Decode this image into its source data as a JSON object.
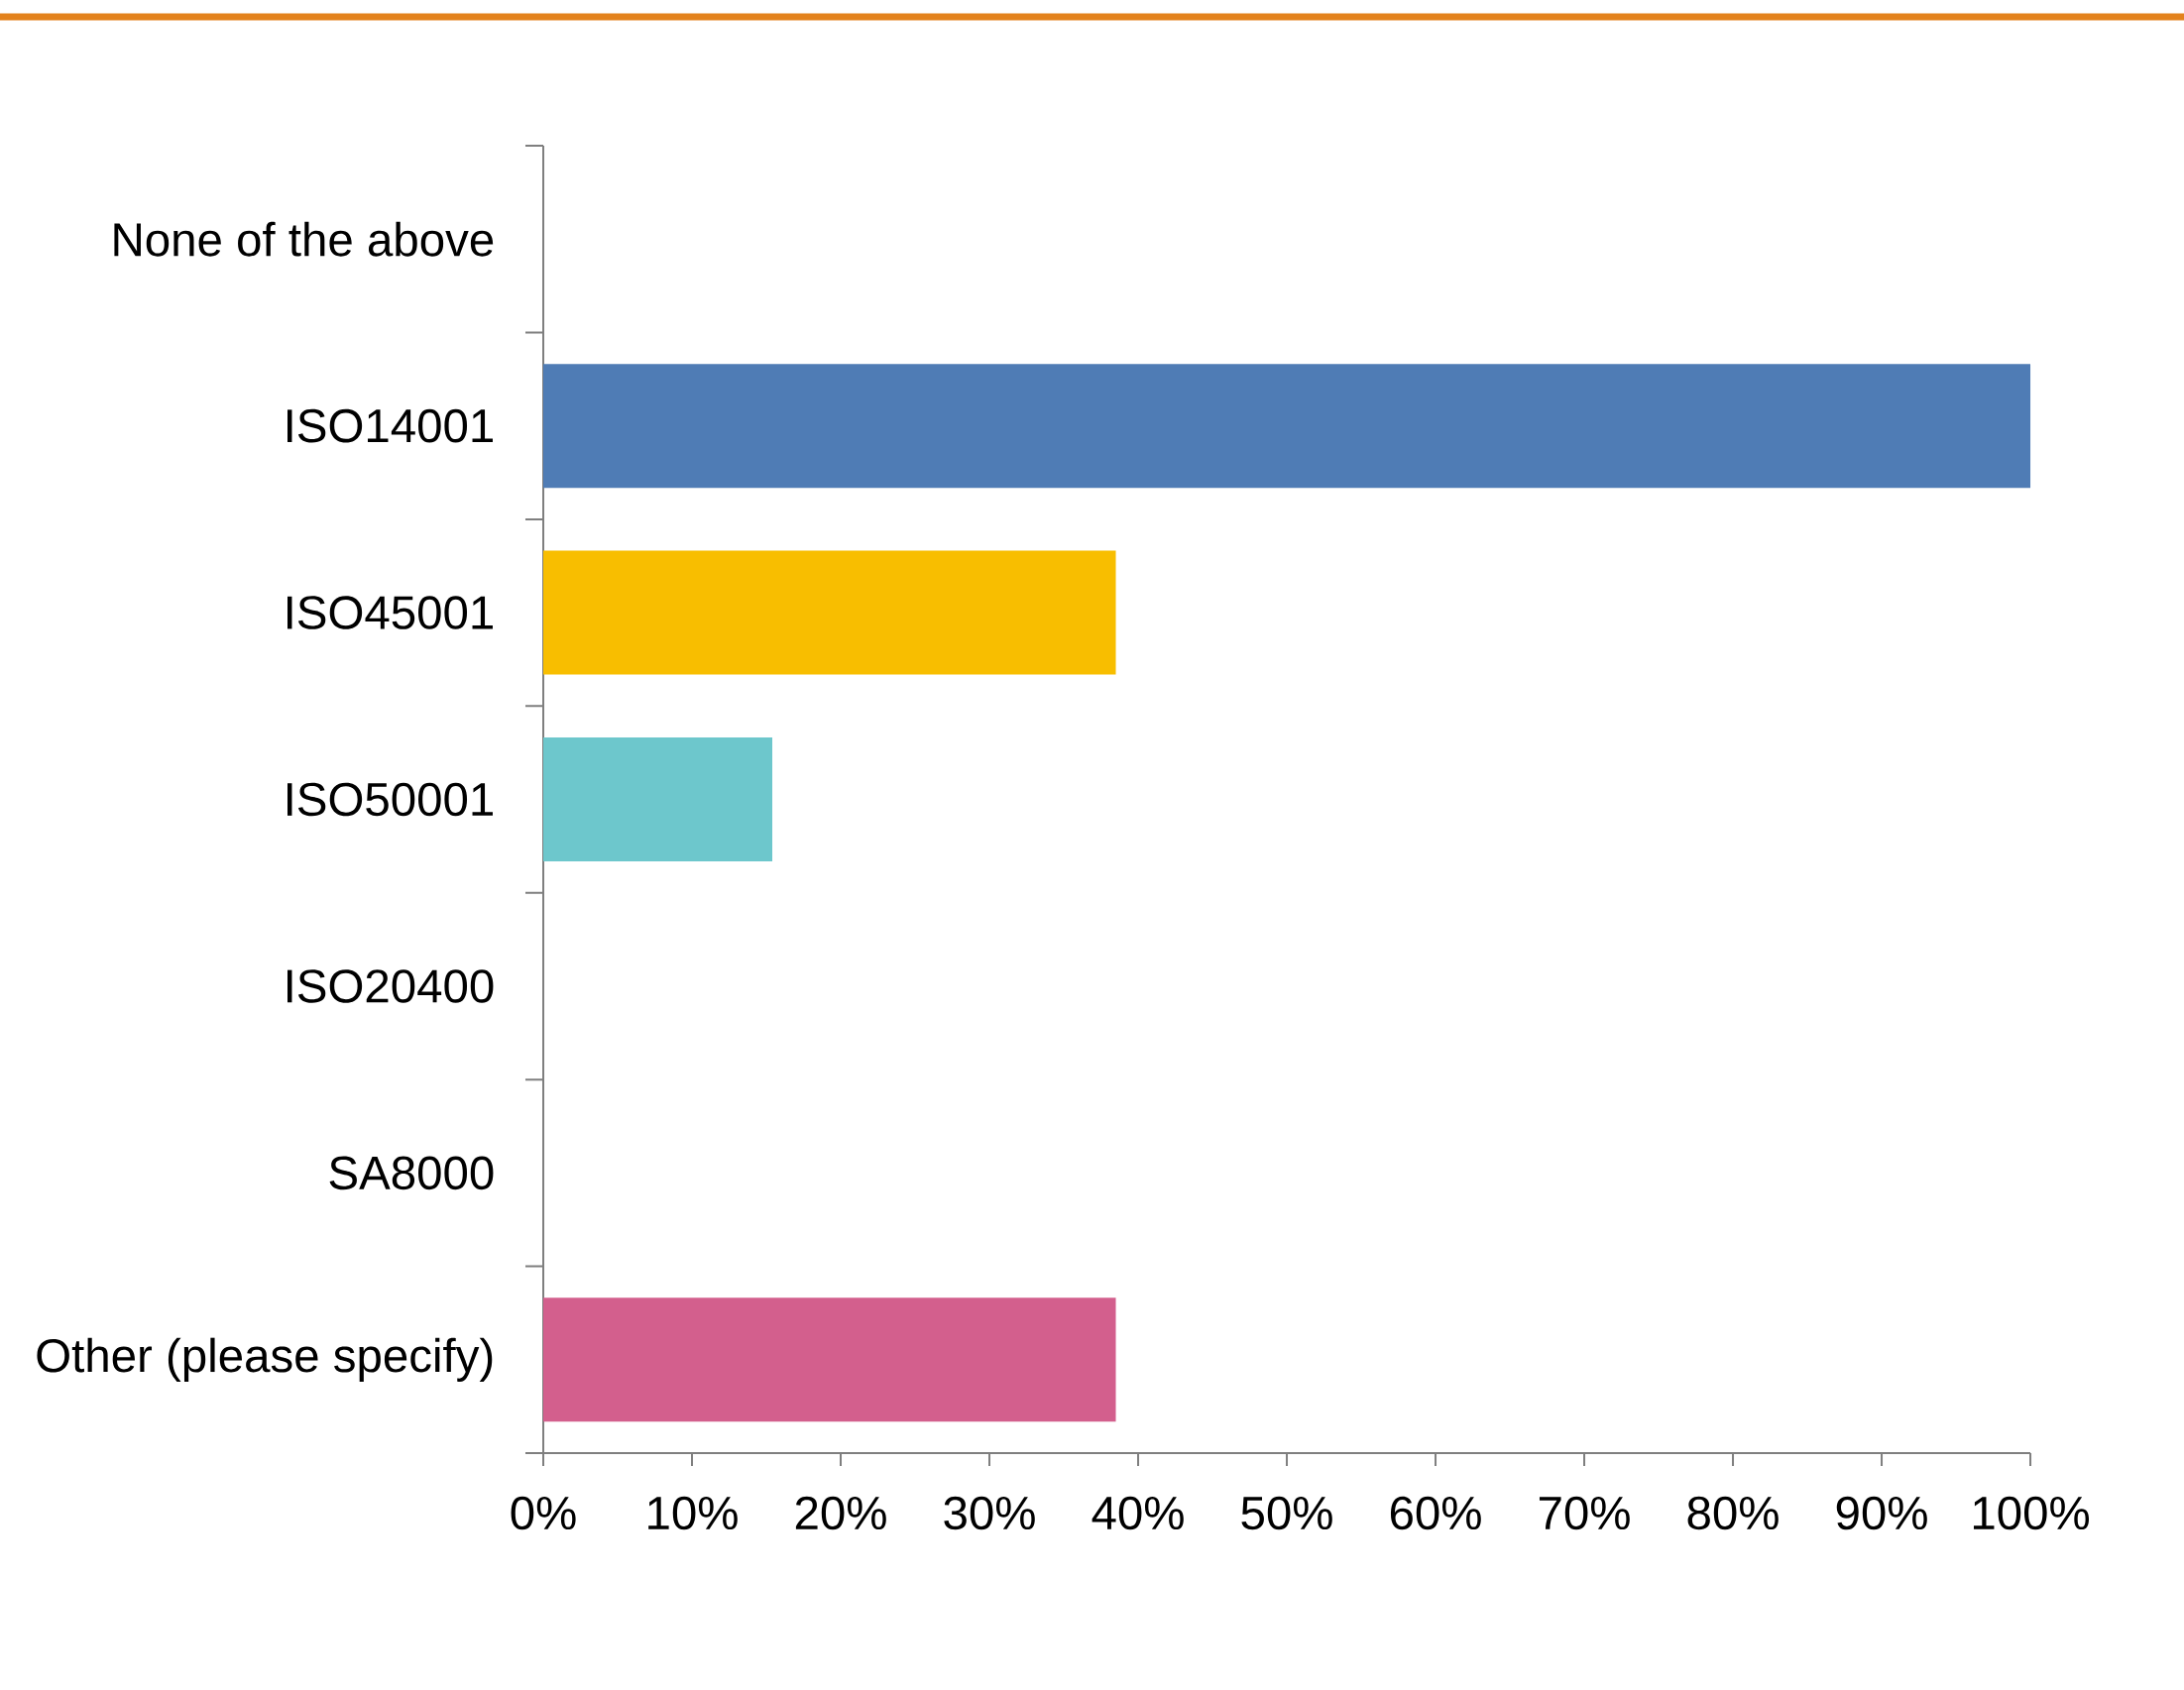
{
  "chart_data": {
    "type": "bar",
    "orientation": "horizontal",
    "categories": [
      "None of the above",
      "ISO14001",
      "ISO45001",
      "ISO50001",
      "ISO20400",
      "SA8000",
      "Other (please specify)"
    ],
    "values": [
      0,
      100,
      38.5,
      15.4,
      0,
      0,
      38.5
    ],
    "colors": [
      null,
      "#4f7cb5",
      "#f8be00",
      "#6dc7cc",
      null,
      null,
      "#d35f8d"
    ],
    "xlim": [
      0,
      100
    ],
    "xticks": [
      {
        "value": 0,
        "label": "0%"
      },
      {
        "value": 10,
        "label": "10%"
      },
      {
        "value": 20,
        "label": "20%"
      },
      {
        "value": 30,
        "label": "30%"
      },
      {
        "value": 40,
        "label": "40%"
      },
      {
        "value": 50,
        "label": "50%"
      },
      {
        "value": 60,
        "label": "60%"
      },
      {
        "value": 70,
        "label": "70%"
      },
      {
        "value": 80,
        "label": "80%"
      },
      {
        "value": 90,
        "label": "90%"
      },
      {
        "value": 100,
        "label": "100%"
      }
    ]
  }
}
